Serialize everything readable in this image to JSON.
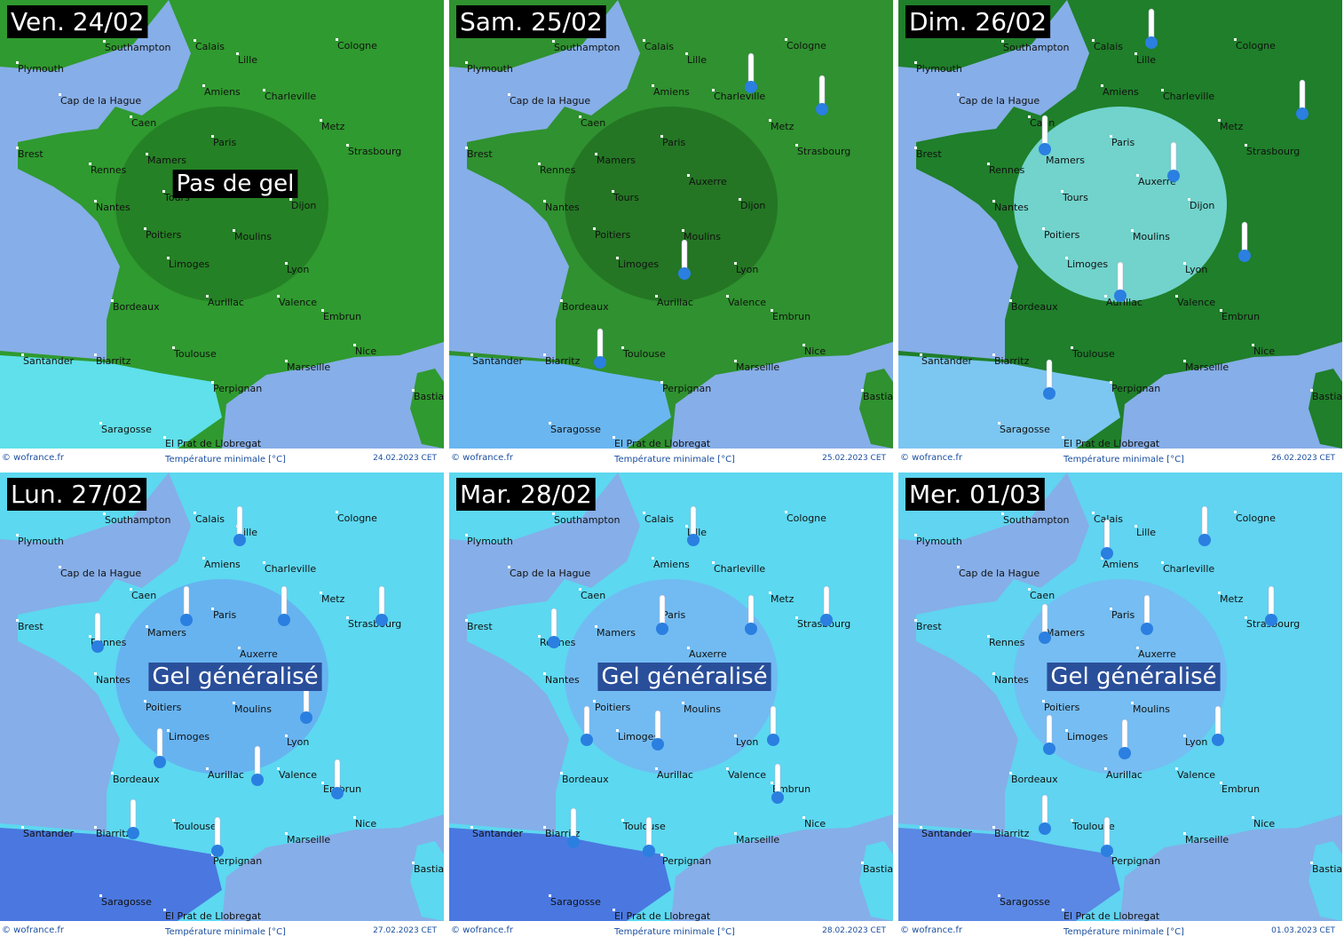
{
  "panels": [
    {
      "day": "Ven. 24/02",
      "date": "24.02.2023 CET",
      "note": "Pas de gel"
    },
    {
      "day": "Sam. 25/02",
      "date": "25.02.2023 CET"
    },
    {
      "day": "Dim. 26/02",
      "date": "26.02.2023 CET"
    },
    {
      "day": "Lun. 27/02",
      "date": "27.02.2023 CET",
      "note": "Gel généralisé"
    },
    {
      "day": "Mar. 28/02",
      "date": "28.02.2023 CET",
      "note": "Gel généralisé"
    },
    {
      "day": "Mer. 01/03",
      "date": "01.03.2023 CET",
      "note": "Gel généralisé"
    }
  ],
  "cities": [
    "Southampton",
    "Plymouth",
    "Calais",
    "Lille",
    "Cologne",
    "Amiens",
    "Charleville",
    "Cap de la Hague",
    "Caen",
    "Metz",
    "Brest",
    "Paris",
    "Strasbourg",
    "Mamers",
    "Rennes",
    "Auxerre",
    "Tours",
    "Nantes",
    "Dijon",
    "Poitiers",
    "Moulins",
    "Limoges",
    "Lyon",
    "Bordeaux",
    "Aurillac",
    "Valence",
    "Embrun",
    "Toulouse",
    "Nice",
    "Marseille",
    "Santander",
    "Biarritz",
    "Perpignan",
    "Bastia",
    "Saragosse",
    "El Prat de Llobregat"
  ],
  "footer": {
    "credit": "© wofrance.fr",
    "caption": "Température minimale [°C]"
  }
}
